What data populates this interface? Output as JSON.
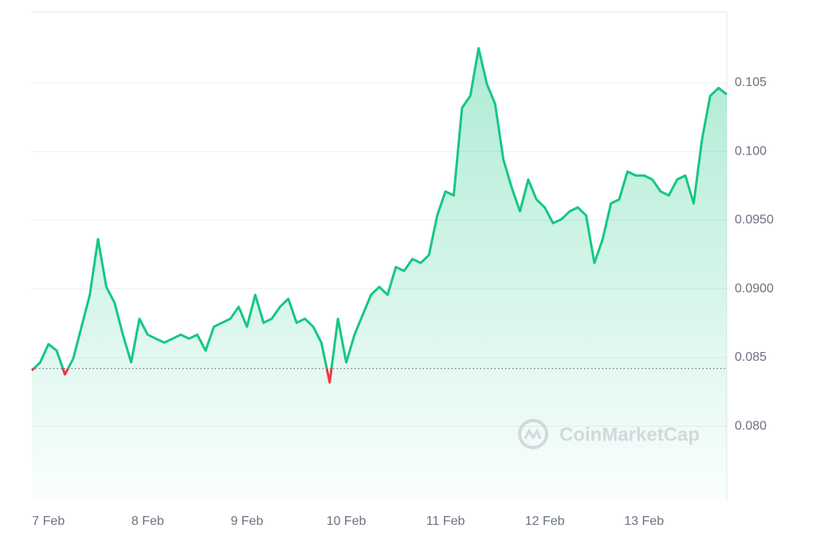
{
  "chart_data": {
    "type": "line",
    "watermark": "CoinMarketCap",
    "categories": [
      null,
      null,
      "7 Feb",
      null,
      null,
      null,
      null,
      null,
      null,
      null,
      null,
      null,
      null,
      null,
      "8 Feb",
      null,
      null,
      null,
      null,
      null,
      null,
      null,
      null,
      null,
      null,
      null,
      "9 Feb",
      null,
      null,
      null,
      null,
      null,
      null,
      null,
      null,
      null,
      null,
      null,
      "10 Feb",
      null,
      null,
      null,
      null,
      null,
      null,
      null,
      null,
      null,
      null,
      null,
      "11 Feb",
      null,
      null,
      null,
      null,
      null,
      null,
      null,
      null,
      null,
      null,
      null,
      "12 Feb",
      null,
      null,
      null,
      null,
      null,
      null,
      null,
      null,
      null,
      null,
      null,
      "13 Feb",
      null,
      null,
      null,
      null,
      null,
      null,
      null,
      null,
      null,
      null
    ],
    "series": [
      {
        "color": "#16c784",
        "down_color": "#ea3943",
        "values": [
          0.08406,
          0.08464,
          0.08597,
          0.0855,
          0.08377,
          0.08492,
          0.08724,
          0.08956,
          0.09362,
          0.09014,
          0.08898,
          0.08666,
          0.08464,
          0.08782,
          0.08666,
          0.08637,
          0.08608,
          0.08637,
          0.08666,
          0.08637,
          0.08666,
          0.0855,
          0.08724,
          0.08753,
          0.08782,
          0.08869,
          0.08724,
          0.08956,
          0.08753,
          0.08782,
          0.08869,
          0.08927,
          0.08753,
          0.08782,
          0.08724,
          0.08608,
          0.08319,
          0.08782,
          0.08464,
          0.08666,
          0.08811,
          0.08956,
          0.09014,
          0.08956,
          0.09159,
          0.0913,
          0.09217,
          0.09188,
          0.09246,
          0.09535,
          0.09709,
          0.0968,
          0.10318,
          0.10405,
          0.10752,
          0.10491,
          0.10347,
          0.09941,
          0.09738,
          0.09564,
          0.09796,
          0.09651,
          0.09593,
          0.09478,
          0.09506,
          0.09564,
          0.09593,
          0.09535,
          0.09188,
          0.09362,
          0.09622,
          0.09651,
          0.09854,
          0.09825,
          0.09825,
          0.09796,
          0.09709,
          0.0968,
          0.09796,
          0.09825,
          0.09622,
          0.10086,
          0.10405,
          0.10462,
          0.10416
        ]
      }
    ],
    "baseline": 0.0842,
    "ylim": [
      0.07461,
      0.11016
    ],
    "yticks": [
      {
        "value": 0.08,
        "label": "0.080"
      },
      0.085,
      {
        "value": 0.09,
        "label": "0.0900"
      },
      {
        "value": 0.095,
        "label": "0.0950"
      },
      {
        "value": 0.1,
        "label": "0.100"
      },
      0.105
    ],
    "grid": true
  }
}
